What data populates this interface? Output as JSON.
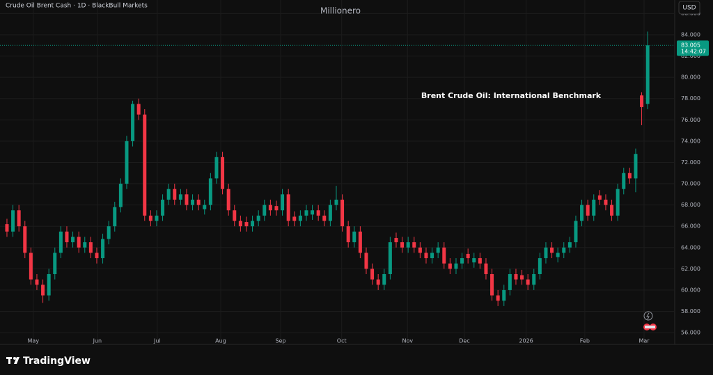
{
  "chart_data": {
    "type": "candlestick",
    "title": "Crude Oil Brent Cash · 1D · BlackBull Markets",
    "header": "Millionero",
    "annotation": "Brent Crude Oil: International Benchmark",
    "currency": "USD",
    "countdown": "14:42:07",
    "brand": "TradingView",
    "up_color": "#089981",
    "down_color": "#f23645",
    "open": [
      66.2,
      65.5,
      67.5,
      66,
      63.5,
      61,
      60.5,
      59.5,
      61.5,
      63.5,
      65.5,
      64.5,
      65,
      64,
      64.5,
      63.5,
      63,
      64.8,
      66,
      67.8,
      70,
      74,
      77.5,
      76.5,
      67,
      66.5,
      67,
      68.5,
      69.5,
      68.5,
      69,
      68,
      68.5,
      67.6,
      68,
      70.5,
      72.5,
      69.5,
      67.5,
      66.5,
      66.4,
      66,
      66.5,
      67,
      68,
      67.9,
      67.5,
      69,
      66.9,
      66.5,
      67,
      67.1,
      67.5,
      67,
      66.5,
      68,
      68.5,
      66,
      64.5,
      65.5,
      63.5,
      62,
      61,
      60.5,
      61.5,
      64.9,
      64.5,
      64,
      64.5,
      64,
      63.5,
      63,
      63.5,
      64,
      62.5,
      62,
      62.5,
      63.4,
      62.6,
      63,
      62.5,
      61.5,
      59.5,
      59,
      60,
      61.5,
      61.4,
      61,
      60.5,
      61.5,
      63,
      64,
      63.1,
      63.5,
      64,
      64.5,
      66.5,
      68,
      67,
      68.9,
      68.5,
      68,
      67,
      69.5,
      71,
      70.5,
      78.3,
      77.5
    ],
    "high": [
      66.7,
      68,
      68,
      66.5,
      64,
      61.5,
      61,
      62,
      64,
      66,
      66,
      65.5,
      65.5,
      65,
      65,
      64,
      65.3,
      66.5,
      68.3,
      70.5,
      74.5,
      77.8,
      78,
      77,
      67.5,
      67.5,
      69,
      70,
      70,
      69.5,
      69.5,
      69,
      69,
      68.5,
      71,
      73,
      73,
      70,
      68,
      67,
      66.9,
      67,
      67.5,
      68.5,
      68.5,
      68.4,
      69.5,
      69.5,
      67.4,
      67.5,
      68,
      68,
      68,
      67.5,
      68.5,
      69.8,
      69,
      66.5,
      66,
      66,
      64,
      62.5,
      61.5,
      62,
      65,
      65.4,
      65,
      65,
      65,
      64.5,
      64,
      64,
      64.5,
      64.5,
      63,
      63,
      63.5,
      63.9,
      63.5,
      63.5,
      63,
      62,
      60,
      60.5,
      62,
      62,
      61.9,
      61.5,
      62,
      63.5,
      64.5,
      64.5,
      64,
      64.5,
      65,
      67,
      68.5,
      68.5,
      69,
      69.4,
      69,
      68.5,
      70,
      71.5,
      71.5,
      73.3,
      78.6,
      84.3
    ],
    "low": [
      65,
      65,
      65.5,
      63,
      60.5,
      60,
      58.8,
      59,
      61,
      63,
      64,
      64,
      63.5,
      63.5,
      63,
      62.5,
      62.5,
      64.3,
      65.5,
      67.3,
      69.5,
      73.5,
      76,
      66.5,
      66,
      66,
      66.5,
      68,
      68,
      68,
      67.5,
      67.5,
      67.5,
      67.1,
      67.5,
      70,
      69,
      67,
      66,
      65.5,
      65.5,
      65.5,
      66,
      66.5,
      67,
      67,
      67,
      66,
      66,
      66,
      66.5,
      66.6,
      66.5,
      66,
      66,
      67.5,
      65.5,
      64,
      64,
      63,
      61.5,
      60.5,
      60,
      60,
      61,
      64,
      63.5,
      63.5,
      63.5,
      63,
      62.5,
      62.5,
      63,
      62,
      61.5,
      61.5,
      62,
      62.5,
      62.1,
      62,
      61,
      59,
      58.5,
      58.5,
      59.5,
      60.5,
      60.5,
      60,
      60,
      61,
      62.5,
      63,
      62.6,
      63,
      63.5,
      64,
      66,
      66.5,
      66.5,
      68,
      67.5,
      66.5,
      66.5,
      69,
      70,
      69.2,
      75.5,
      77
    ],
    "close": [
      65.5,
      67.5,
      66,
      63.5,
      61,
      60.5,
      59.5,
      61.5,
      63.5,
      65.5,
      64.5,
      65,
      64,
      64.5,
      63.5,
      63,
      64.8,
      66,
      67.8,
      70,
      74,
      77.5,
      76.5,
      67,
      66.5,
      67,
      68.5,
      69.5,
      68.5,
      69,
      68,
      68.5,
      68,
      68,
      70.5,
      72.5,
      69.5,
      67.5,
      66.5,
      66,
      66,
      66.5,
      67,
      68,
      67.5,
      67.5,
      69,
      66.5,
      66.5,
      67,
      67.5,
      67.5,
      67,
      66.5,
      68,
      68.5,
      66,
      64.5,
      65.5,
      63.5,
      62,
      61,
      60.5,
      61.5,
      64.5,
      64.5,
      64,
      64.5,
      64,
      63.5,
      63,
      63.5,
      64,
      62.5,
      62,
      62.5,
      63,
      63,
      63,
      62.5,
      61.5,
      59.5,
      59,
      60,
      61.5,
      61,
      61,
      60.5,
      61.5,
      63,
      64,
      63.5,
      63.5,
      64,
      64.5,
      66.5,
      68,
      67,
      68.5,
      68.5,
      68,
      67,
      69.5,
      71,
      70.5,
      72.8,
      77.2,
      83.005
    ],
    "xlim": [
      -1.16,
      111.4
    ],
    "xticks": [
      {
        "value": 4.4,
        "label": "May"
      },
      {
        "value": 15.1,
        "label": "Jun"
      },
      {
        "value": 25.1,
        "label": "Jul"
      },
      {
        "value": 35.7,
        "label": "Aug"
      },
      {
        "value": 45.7,
        "label": "Sep"
      },
      {
        "value": 55.9,
        "label": "Oct"
      },
      {
        "value": 66.9,
        "label": "Nov"
      },
      {
        "value": 76.4,
        "label": "Dec"
      },
      {
        "value": 86.7,
        "label": "2026"
      },
      {
        "value": 96.5,
        "label": "Feb"
      },
      {
        "value": 106.4,
        "label": "Mar"
      }
    ],
    "ylim": [
      55.22,
      87.27
    ],
    "yticks": [
      {
        "value": 56,
        "label": "56.000"
      },
      {
        "value": 58,
        "label": "58.000"
      },
      {
        "value": 60,
        "label": "60.000"
      },
      {
        "value": 62,
        "label": "62.000"
      },
      {
        "value": 64,
        "label": "64.000"
      },
      {
        "value": 66,
        "label": "66.000"
      },
      {
        "value": 68,
        "label": "68.000"
      },
      {
        "value": 70,
        "label": "70.000"
      },
      {
        "value": 72,
        "label": "72.000"
      },
      {
        "value": 74,
        "label": "74.000"
      },
      {
        "value": 76,
        "label": "76.000"
      },
      {
        "value": 78,
        "label": "78.000"
      },
      {
        "value": 80,
        "label": "80.000"
      },
      {
        "value": 82,
        "label": "82.000"
      },
      {
        "value": 84,
        "label": "84.000"
      },
      {
        "value": 86,
        "label": "86.000"
      }
    ]
  }
}
